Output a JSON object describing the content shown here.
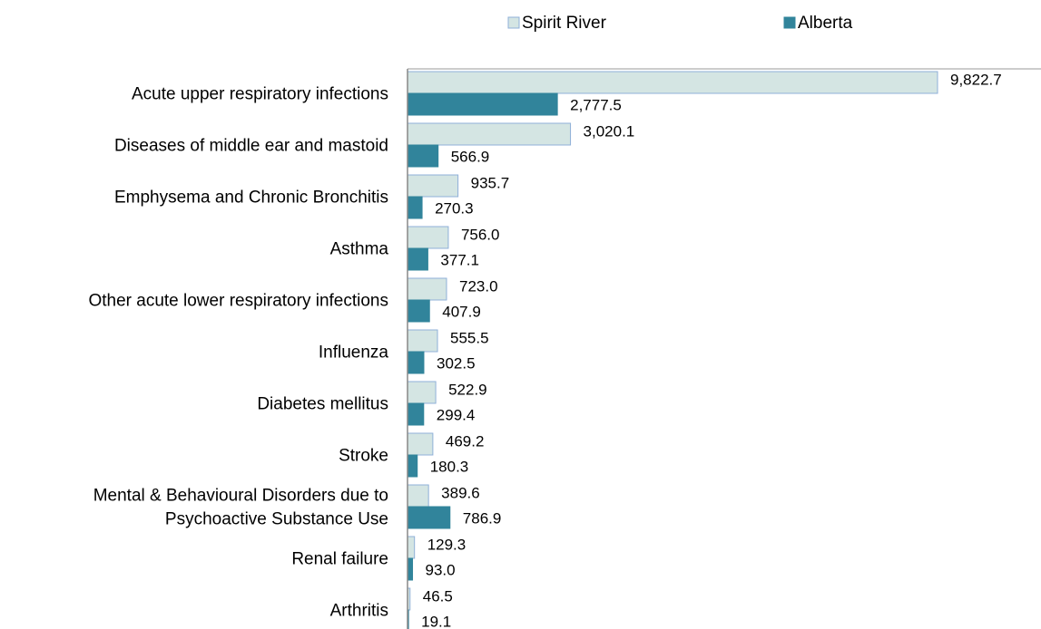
{
  "chart_data": {
    "type": "barh",
    "categories": [
      "Acute upper respiratory infections",
      "Diseases of middle ear and mastoid",
      "Emphysema and Chronic Bronchitis",
      "Asthma",
      "Other acute lower respiratory infections",
      "Influenza",
      "Diabetes mellitus",
      "Stroke",
      "Mental & Behavioural Disorders due to\nPsychoactive Substance Use",
      "Renal failure",
      "Arthritis"
    ],
    "series": [
      {
        "name": "Spirit River",
        "color": "#d4e5e3",
        "edge": "#8fb0d8",
        "values": [
          9822.7,
          3020.1,
          935.7,
          756.0,
          723.0,
          555.5,
          522.9,
          469.2,
          389.6,
          129.3,
          46.5
        ],
        "value_labels": [
          "9,822.7",
          "3,020.1",
          "935.7",
          "756.0",
          "723.0",
          "555.5",
          "522.9",
          "469.2",
          "389.6",
          "129.3",
          "46.5"
        ]
      },
      {
        "name": "Alberta",
        "color": "#31849b",
        "edge": "#31849b",
        "values": [
          2777.5,
          566.9,
          270.3,
          377.1,
          407.9,
          302.5,
          299.4,
          180.3,
          786.9,
          93.0,
          19.1
        ],
        "value_labels": [
          "2,777.5",
          "566.9",
          "270.3",
          "377.1",
          "407.9",
          "302.5",
          "299.4",
          "180.3",
          "786.9",
          "93.0",
          "19.1"
        ]
      }
    ],
    "xlim": [
      0,
      11740
    ],
    "legend": "top"
  }
}
